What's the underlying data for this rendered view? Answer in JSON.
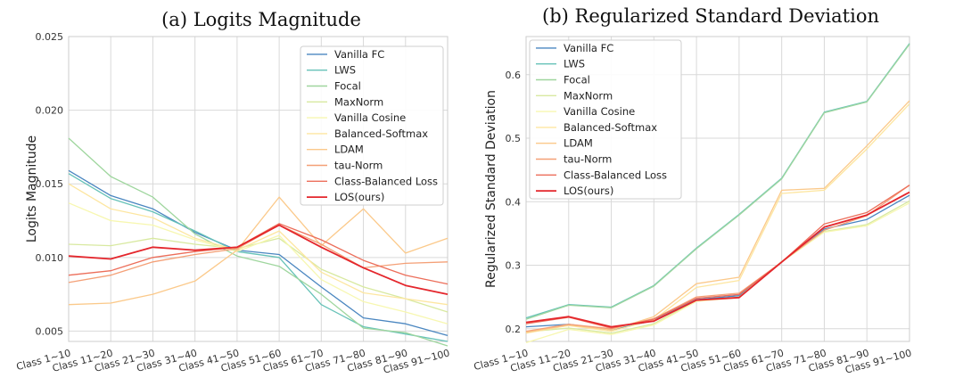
{
  "colors": {
    "Vanilla FC": "#4a86c0",
    "LWS": "#66c2b8",
    "Focal": "#9fd69e",
    "MaxNorm": "#d8e9a0",
    "Vanilla Cosine": "#f7f7b0",
    "Balanced-Softmax": "#fde6a0",
    "LDAM": "#fbc98a",
    "tau-Norm": "#f4a077",
    "Class-Balanced Loss": "#ec6e5a",
    "LOS(ours)": "#e4262c"
  },
  "chart_data": [
    {
      "type": "line",
      "title": "(a) Logits Magnitude",
      "xlabel": "",
      "ylabel": "Logits Magnitude",
      "ylim": [
        0.0043,
        0.025
      ],
      "yticks": [
        0.005,
        0.01,
        0.015,
        0.02,
        0.025
      ],
      "ytick_labels": [
        "0.005",
        "0.010",
        "0.015",
        "0.020",
        "0.025"
      ],
      "grid": true,
      "legend_position": "top-right",
      "categories": [
        "Class 1~10",
        "Class 11~20",
        "Class 21~30",
        "Class 31~40",
        "Class 41~50",
        "Class 51~60",
        "Class 61~70",
        "Class 71~80",
        "Class 81~90",
        "Class 91~100"
      ],
      "series": [
        {
          "name": "Vanilla FC",
          "values": [
            0.0159,
            0.0142,
            0.0133,
            0.0117,
            0.0105,
            0.0102,
            0.008,
            0.0059,
            0.0055,
            0.0047
          ]
        },
        {
          "name": "LWS",
          "values": [
            0.0157,
            0.014,
            0.0131,
            0.0118,
            0.0104,
            0.01,
            0.0068,
            0.0053,
            0.0048,
            0.0043
          ]
        },
        {
          "name": "Focal",
          "values": [
            0.0181,
            0.0155,
            0.0141,
            0.0116,
            0.0101,
            0.0094,
            0.0075,
            0.0052,
            0.0049,
            0.004
          ]
        },
        {
          "name": "MaxNorm",
          "values": [
            0.0109,
            0.0108,
            0.0113,
            0.0109,
            0.0106,
            0.0113,
            0.0092,
            0.008,
            0.0072,
            0.0063
          ]
        },
        {
          "name": "Vanilla Cosine",
          "values": [
            0.0137,
            0.0125,
            0.0122,
            0.0112,
            0.0104,
            0.0115,
            0.0085,
            0.007,
            0.0063,
            0.0055
          ]
        },
        {
          "name": "Balanced-Softmax",
          "values": [
            0.015,
            0.0133,
            0.0127,
            0.0113,
            0.0105,
            0.0118,
            0.009,
            0.0076,
            0.0072,
            0.0068
          ]
        },
        {
          "name": "LDAM",
          "values": [
            0.0068,
            0.0069,
            0.0075,
            0.0084,
            0.0105,
            0.0141,
            0.0108,
            0.0133,
            0.0103,
            0.0113
          ]
        },
        {
          "name": "tau-Norm",
          "values": [
            0.0083,
            0.0088,
            0.0097,
            0.0102,
            0.0106,
            0.0122,
            0.0109,
            0.0093,
            0.0096,
            0.0097
          ]
        },
        {
          "name": "Class-Balanced Loss",
          "values": [
            0.0088,
            0.0091,
            0.01,
            0.0104,
            0.0107,
            0.0123,
            0.0112,
            0.0098,
            0.0088,
            0.0082
          ]
        },
        {
          "name": "LOS(ours)",
          "values": [
            0.0101,
            0.0099,
            0.0107,
            0.0105,
            0.0107,
            0.0122,
            0.0107,
            0.0093,
            0.0081,
            0.0075
          ]
        }
      ]
    },
    {
      "type": "line",
      "title": "(b) Regularized Standard Deviation",
      "xlabel": "",
      "ylabel": "Regularized Standard Deviation",
      "ylim": [
        0.18,
        0.66
      ],
      "yticks": [
        0.2,
        0.3,
        0.4,
        0.5,
        0.6
      ],
      "ytick_labels": [
        "0.2",
        "0.3",
        "0.4",
        "0.5",
        "0.6"
      ],
      "grid": true,
      "legend_position": "top-left",
      "categories": [
        "Class 1~10",
        "Class 11~20",
        "Class 21~30",
        "Class 31~40",
        "Class 41~50",
        "Class 51~60",
        "Class 61~70",
        "Class 71~80",
        "Class 81~90",
        "Class 91~100"
      ],
      "series": [
        {
          "name": "Vanilla FC",
          "values": [
            0.203,
            0.207,
            0.198,
            0.213,
            0.246,
            0.252,
            0.305,
            0.357,
            0.372,
            0.41
          ]
        },
        {
          "name": "LWS",
          "values": [
            0.217,
            0.238,
            0.234,
            0.268,
            0.327,
            0.38,
            0.437,
            0.541,
            0.558,
            0.649
          ]
        },
        {
          "name": "Focal",
          "values": [
            0.215,
            0.237,
            0.233,
            0.267,
            0.326,
            0.379,
            0.436,
            0.54,
            0.557,
            0.648
          ]
        },
        {
          "name": "MaxNorm",
          "values": [
            0.195,
            0.201,
            0.193,
            0.208,
            0.244,
            0.25,
            0.306,
            0.353,
            0.364,
            0.401
          ]
        },
        {
          "name": "Vanilla Cosine",
          "values": [
            0.178,
            0.199,
            0.191,
            0.206,
            0.243,
            0.249,
            0.305,
            0.352,
            0.362,
            0.398
          ]
        },
        {
          "name": "Balanced-Softmax",
          "values": [
            0.193,
            0.205,
            0.196,
            0.214,
            0.265,
            0.276,
            0.413,
            0.418,
            0.483,
            0.554
          ]
        },
        {
          "name": "LDAM",
          "values": [
            0.194,
            0.206,
            0.198,
            0.219,
            0.271,
            0.281,
            0.418,
            0.421,
            0.488,
            0.559
          ]
        },
        {
          "name": "tau-Norm",
          "values": [
            0.196,
            0.207,
            0.2,
            0.216,
            0.25,
            0.256,
            0.305,
            0.355,
            0.378,
            0.426
          ]
        },
        {
          "name": "Class-Balanced Loss",
          "values": [
            0.208,
            0.218,
            0.201,
            0.215,
            0.248,
            0.254,
            0.305,
            0.365,
            0.383,
            0.426
          ]
        },
        {
          "name": "LOS(ours)",
          "values": [
            0.21,
            0.219,
            0.203,
            0.212,
            0.245,
            0.249,
            0.305,
            0.36,
            0.379,
            0.415
          ]
        }
      ]
    }
  ]
}
